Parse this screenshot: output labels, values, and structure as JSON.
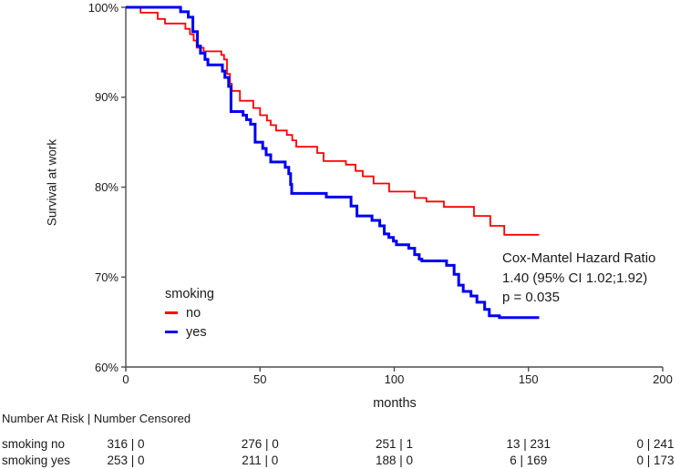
{
  "chart_data": {
    "type": "line",
    "subtype": "kaplan-meier-step",
    "xlabel": "months",
    "ylabel": "Survival at work",
    "xlim": [
      0,
      200
    ],
    "ylim": [
      60,
      100
    ],
    "x_ticks": [
      0,
      50,
      100,
      150,
      200
    ],
    "x_tick_labels": [
      "0",
      "50",
      "100",
      "150",
      "200"
    ],
    "y_ticks": [
      100,
      90,
      80,
      70,
      60
    ],
    "y_tick_labels": [
      "100%",
      "90%",
      "80%",
      "70%",
      "60%"
    ],
    "grid": false,
    "legend_position": "lower-left-inside",
    "series": [
      {
        "name": "no",
        "color": "#ff0000",
        "stroke_width": 1.8,
        "start": [
          0,
          100
        ],
        "end_x": 154,
        "drops": [
          [
            5.5,
            99.4
          ],
          [
            11.9,
            98.7
          ],
          [
            14.6,
            98.2
          ],
          [
            22.2,
            97.6
          ],
          [
            23.9,
            97.0
          ],
          [
            25.3,
            96.3
          ],
          [
            26.4,
            95.5
          ],
          [
            29.0,
            95.1
          ],
          [
            35.6,
            94.7
          ],
          [
            36.6,
            94.2
          ],
          [
            37.7,
            92.6
          ],
          [
            38.8,
            91.5
          ],
          [
            39.5,
            90.7
          ],
          [
            42.5,
            89.6
          ],
          [
            47.5,
            88.8
          ],
          [
            50.0,
            88.0
          ],
          [
            52.6,
            87.4
          ],
          [
            54.0,
            86.9
          ],
          [
            56.0,
            86.3
          ],
          [
            60.0,
            85.8
          ],
          [
            62.0,
            85.2
          ],
          [
            63.5,
            84.5
          ],
          [
            71.3,
            83.8
          ],
          [
            73.7,
            82.9
          ],
          [
            82.0,
            82.5
          ],
          [
            85.6,
            81.8
          ],
          [
            88.3,
            81.2
          ],
          [
            92.3,
            80.4
          ],
          [
            98.1,
            79.5
          ],
          [
            107.6,
            78.8
          ],
          [
            112.0,
            78.4
          ],
          [
            118.5,
            77.8
          ],
          [
            129.7,
            76.8
          ],
          [
            135.8,
            75.7
          ],
          [
            141.0,
            74.7
          ]
        ]
      },
      {
        "name": "yes",
        "color": "#0000f0",
        "stroke_width": 3,
        "start": [
          0,
          100
        ],
        "end_x": 154,
        "drops": [
          [
            20.4,
            99.5
          ],
          [
            23.3,
            98.9
          ],
          [
            25.0,
            97.3
          ],
          [
            26.7,
            95.7
          ],
          [
            27.8,
            94.9
          ],
          [
            29.5,
            94.2
          ],
          [
            30.6,
            93.6
          ],
          [
            36.0,
            92.9
          ],
          [
            36.9,
            92.2
          ],
          [
            38.3,
            91.2
          ],
          [
            39.2,
            88.4
          ],
          [
            43.7,
            88.0
          ],
          [
            45.0,
            87.5
          ],
          [
            46.5,
            87.0
          ],
          [
            48.2,
            85.0
          ],
          [
            51.0,
            84.3
          ],
          [
            52.3,
            83.6
          ],
          [
            54.0,
            82.8
          ],
          [
            59.4,
            82.2
          ],
          [
            60.7,
            81.5
          ],
          [
            61.4,
            80.3
          ],
          [
            61.8,
            79.3
          ],
          [
            74.7,
            78.9
          ],
          [
            83.9,
            77.9
          ],
          [
            86.1,
            76.8
          ],
          [
            91.7,
            76.3
          ],
          [
            94.6,
            75.7
          ],
          [
            96.3,
            74.8
          ],
          [
            98.0,
            74.4
          ],
          [
            99.7,
            74.0
          ],
          [
            100.8,
            73.6
          ],
          [
            105.4,
            73.2
          ],
          [
            107.6,
            72.5
          ],
          [
            109.3,
            72.0
          ],
          [
            110.3,
            71.8
          ],
          [
            119.5,
            71.3
          ],
          [
            122.3,
            70.3
          ],
          [
            124.0,
            69.1
          ],
          [
            125.7,
            68.4
          ],
          [
            128.6,
            67.9
          ],
          [
            130.8,
            67.2
          ],
          [
            133.7,
            66.4
          ],
          [
            135.4,
            65.7
          ],
          [
            139.2,
            65.5
          ]
        ]
      }
    ],
    "legend": {
      "title": "smoking",
      "entries": [
        {
          "label": "no",
          "color": "#ff0000"
        },
        {
          "label": "yes",
          "color": "#0000f0"
        }
      ]
    },
    "annotation": {
      "line1": "Cox-Mantel Hazard Ratio",
      "line2": "1.40 (95% CI 1.02;1.92)",
      "line3": "p = 0.035"
    }
  },
  "risk_table": {
    "header": "Number At Risk | Number Censored",
    "rows": [
      {
        "label": "smoking no",
        "values": [
          "316 | 0",
          "276 | 0",
          "251 | 1",
          "13 | 231",
          "0 | 241"
        ]
      },
      {
        "label": "smoking yes",
        "values": [
          "253 | 0",
          "211 | 0",
          "188 | 0",
          "6 | 169",
          "0 | 173"
        ]
      }
    ]
  },
  "colors": {
    "axis": "#4d4d4d",
    "text": "#1a1a1a",
    "background": "#ffffff"
  }
}
